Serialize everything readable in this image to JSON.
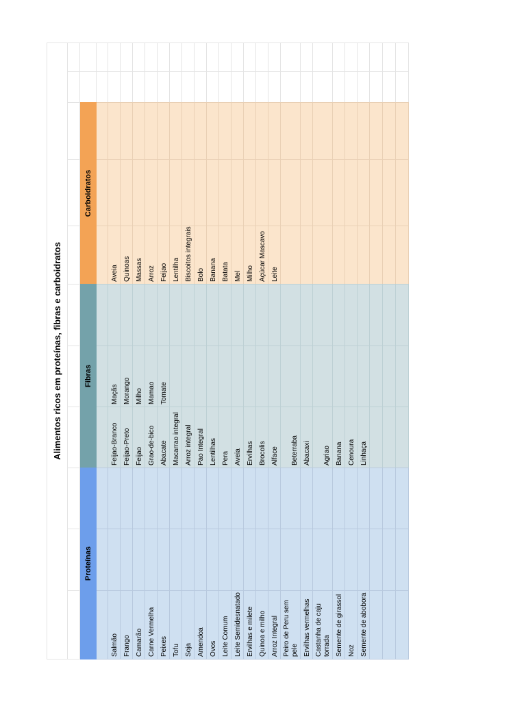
{
  "title": "Alimentos ricos em proteínas, fibras e carboidratos",
  "headers": {
    "proteinas": "Proteínas",
    "fibras": "Fibras",
    "carboidratos": "Carboidratos"
  },
  "colors": {
    "proteinas_header": "#6d9eeb",
    "proteinas_fill": "#cfe0f1",
    "fibras_header": "#74a2aa",
    "fibras_fill": "#d2e0e3",
    "carboidratos_header": "#f3a355",
    "carboidratos_fill": "#fbe5cc"
  },
  "rows": [
    {
      "proteinas": "Salmão",
      "fibras_a": "Feijao-Branco",
      "fibras_b": "Maçãs",
      "carboidratos": "Aveia"
    },
    {
      "proteinas": "Frango",
      "fibras_a": "Feijao-Preto",
      "fibras_b": "Morango",
      "carboidratos": "Quinoas"
    },
    {
      "proteinas": "Camarão",
      "fibras_a": "Feijao",
      "fibras_b": "Milho",
      "carboidratos": "Massas"
    },
    {
      "proteinas": "Carne Vermelha",
      "fibras_a": "Grao-de-bico",
      "fibras_b": "Mamao",
      "carboidratos": "Arroz"
    },
    {
      "proteinas": "Peixes",
      "fibras_a": "Abacate",
      "fibras_b": "Tomate",
      "carboidratos": "Feijao"
    },
    {
      "proteinas": "Tofu",
      "fibras_a": "Macarrao integral",
      "fibras_b": "",
      "carboidratos": "Lentilha"
    },
    {
      "proteinas": "Soja",
      "fibras_a": "Arroz integral",
      "fibras_b": "",
      "carboidratos": "Biscoitos integrais"
    },
    {
      "proteinas": "Amendoa",
      "fibras_a": "Pao Integral",
      "fibras_b": "",
      "carboidratos": "Bolo"
    },
    {
      "proteinas": "Ovos",
      "fibras_a": "Lentilhas",
      "fibras_b": "",
      "carboidratos": "Banana"
    },
    {
      "proteinas": "Leite Comum",
      "fibras_a": "Pera",
      "fibras_b": "",
      "carboidratos": "Batata"
    },
    {
      "proteinas": "Leite Semidesnatado",
      "fibras_a": "Aveia",
      "fibras_b": "",
      "carboidratos": "Mel"
    },
    {
      "proteinas": "Ervilhas e milete",
      "fibras_a": "Ervilhas",
      "fibras_b": "",
      "carboidratos": "Milho"
    },
    {
      "proteinas": "Quinoa e milho",
      "fibras_a": "Brocolis",
      "fibras_b": "",
      "carboidratos": "Açúcar Mascavo"
    },
    {
      "proteinas": "Arroz Integral",
      "fibras_a": "Alface",
      "fibras_b": "",
      "carboidratos": "Leite"
    },
    {
      "proteinas": "Peiro de Peru sem\npele",
      "fibras_a": "Beterraba",
      "fibras_b": "",
      "carboidratos": ""
    },
    {
      "proteinas": "Ervilhas vermelhas",
      "fibras_a": "Abacaxi",
      "fibras_b": "",
      "carboidratos": ""
    },
    {
      "proteinas": "Castanha de caju\ntorrada",
      "fibras_a": "Agriao",
      "fibras_b": "",
      "carboidratos": ""
    },
    {
      "proteinas": "Semente de girassol",
      "fibras_a": "Banana",
      "fibras_b": "",
      "carboidratos": ""
    },
    {
      "proteinas": "Noz",
      "fibras_a": "Cenoura",
      "fibras_b": "",
      "carboidratos": ""
    },
    {
      "proteinas": "Semente de abobora",
      "fibras_a": "Linhaça",
      "fibras_b": "",
      "carboidratos": ""
    }
  ]
}
